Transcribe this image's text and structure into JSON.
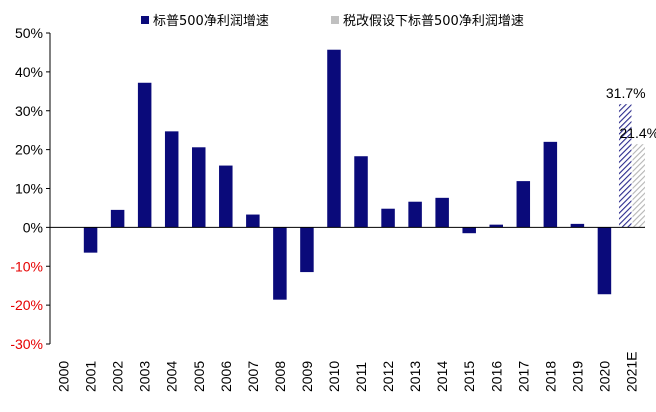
{
  "chart_data": {
    "type": "bar",
    "title": "",
    "xlabel": "",
    "ylabel": "",
    "ylim": [
      -30,
      50
    ],
    "yticks": [
      50,
      40,
      30,
      20,
      10,
      0,
      -10,
      -20,
      -30
    ],
    "ytick_labels": [
      "50%",
      "40%",
      "30%",
      "20%",
      "10%",
      "0%",
      "-10%",
      "-20%",
      "-30%"
    ],
    "negative_tick_color": "#e60000",
    "categories": [
      "2000",
      "2001",
      "2002",
      "2003",
      "2004",
      "2005",
      "2006",
      "2007",
      "2008",
      "2009",
      "2010",
      "2011",
      "2012",
      "2013",
      "2014",
      "2015",
      "2016",
      "2017",
      "2018",
      "2019",
      "2020",
      "2021E"
    ],
    "series": [
      {
        "name": "标普500净利润增速",
        "color": "#0a0a7a",
        "values": [
          null,
          -6.5,
          4.5,
          37.2,
          24.7,
          20.6,
          15.9,
          3.3,
          -18.6,
          -11.5,
          45.7,
          18.3,
          4.8,
          6.6,
          7.6,
          -1.5,
          0.7,
          11.9,
          22.0,
          0.9,
          -17.2,
          31.7
        ]
      },
      {
        "name": "税改假设下标普500净利润增速",
        "color": "#c0c0c0",
        "values": [
          null,
          null,
          null,
          null,
          null,
          null,
          null,
          null,
          null,
          null,
          null,
          null,
          null,
          null,
          null,
          null,
          null,
          null,
          null,
          null,
          null,
          21.4
        ]
      }
    ],
    "data_labels": [
      {
        "category": "2021E",
        "series": 0,
        "text": "31.7%"
      },
      {
        "category": "2021E",
        "series": 1,
        "text": "21.4%"
      }
    ],
    "legend_position": "top"
  }
}
